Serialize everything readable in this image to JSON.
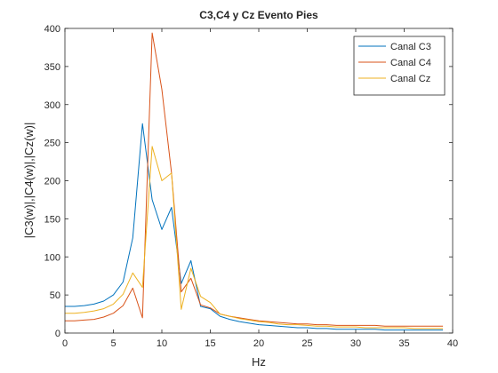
{
  "chart_data": {
    "type": "line",
    "title": "C3,C4 y Cz Evento Pies",
    "xlabel": "Hz",
    "ylabel": "|C3(w)|,|C4(w)|,|Cz(w)|",
    "xlim": [
      0,
      40
    ],
    "ylim": [
      0,
      400
    ],
    "xticks": [
      0,
      5,
      10,
      15,
      20,
      25,
      30,
      35,
      40
    ],
    "yticks": [
      0,
      50,
      100,
      150,
      200,
      250,
      300,
      350,
      400
    ],
    "grid": false,
    "legend_position": "top-right",
    "x": [
      0,
      1,
      2,
      3,
      4,
      5,
      6,
      7,
      8,
      9,
      10,
      11,
      12,
      13,
      14,
      15,
      16,
      17,
      18,
      19,
      20,
      21,
      22,
      23,
      24,
      25,
      26,
      27,
      28,
      29,
      30,
      31,
      32,
      33,
      34,
      35,
      36,
      37,
      38,
      39
    ],
    "series": [
      {
        "name": "Canal C3",
        "color": "#0072BD",
        "values": [
          35,
          35,
          36,
          38,
          42,
          50,
          67,
          125,
          275,
          175,
          136,
          165,
          65,
          95,
          35,
          32,
          22,
          18,
          15,
          13,
          11,
          10,
          9,
          8,
          7,
          7,
          6,
          6,
          5,
          5,
          5,
          5,
          5,
          4,
          4,
          4,
          4,
          4,
          4,
          4
        ]
      },
      {
        "name": "Canal C4",
        "color": "#D95319",
        "values": [
          16,
          16,
          17,
          18,
          21,
          26,
          36,
          59,
          20,
          394,
          320,
          210,
          54,
          72,
          37,
          33,
          25,
          22,
          20,
          18,
          16,
          15,
          14,
          13,
          12,
          12,
          11,
          11,
          10,
          10,
          10,
          10,
          10,
          9,
          9,
          9,
          9,
          9,
          9,
          9
        ]
      },
      {
        "name": "Canal Cz",
        "color": "#EDB120",
        "values": [
          26,
          26,
          27,
          29,
          32,
          38,
          51,
          79,
          60,
          245,
          200,
          210,
          31,
          85,
          48,
          40,
          25,
          22,
          19,
          17,
          15,
          14,
          12,
          11,
          11,
          10,
          9,
          9,
          8,
          8,
          8,
          7,
          7,
          7,
          7,
          7,
          6,
          6,
          6,
          6
        ]
      }
    ]
  }
}
